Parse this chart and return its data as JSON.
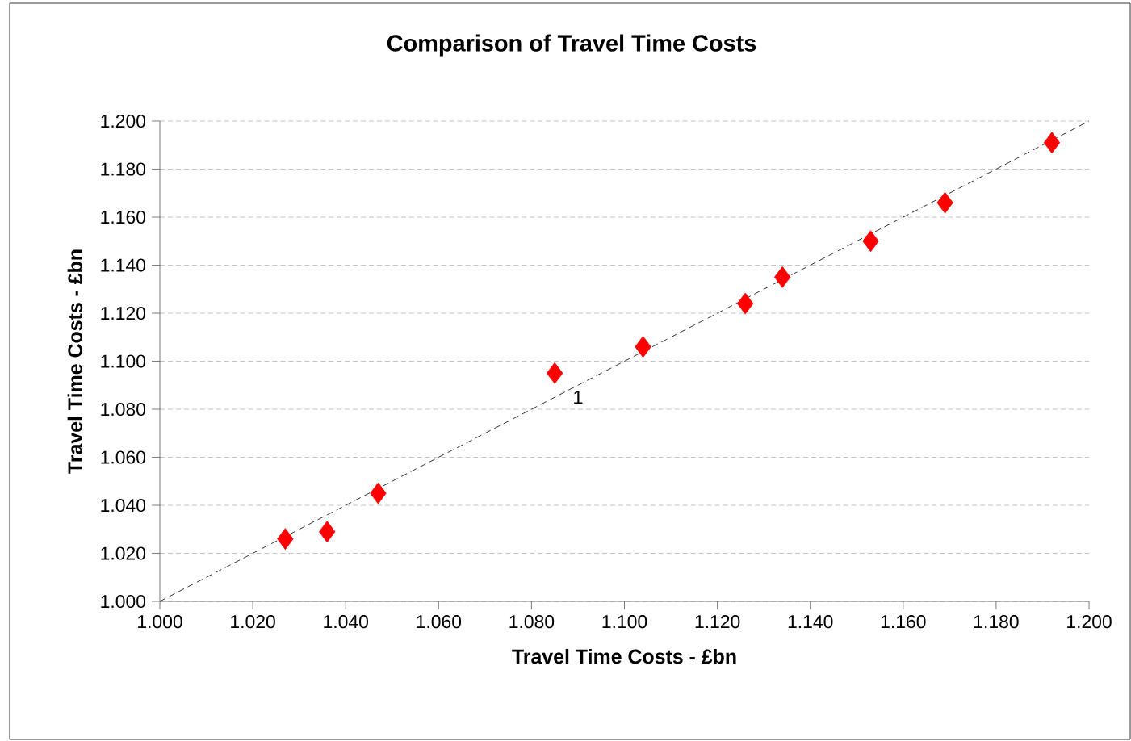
{
  "chart_data": {
    "type": "scatter",
    "title": "Comparison of Travel Time Costs",
    "xlabel": "Travel Time Costs  - £bn",
    "ylabel": "Travel Time Costs - £bn",
    "x": [
      1.027,
      1.036,
      1.047,
      1.085,
      1.104,
      1.126,
      1.134,
      1.153,
      1.169,
      1.192
    ],
    "series": [
      {
        "color": "#ff0000",
        "marker": "diamond",
        "values": [
          1.026,
          1.029,
          1.045,
          1.095,
          1.106,
          1.124,
          1.135,
          1.15,
          1.166,
          1.191
        ]
      },
      {
        "type": "line",
        "color": "#000000",
        "line_style": "dashed",
        "marker": "none",
        "x": [
          1.0,
          1.2
        ],
        "values": [
          1.0,
          1.2
        ]
      }
    ],
    "annotations": [
      "1"
    ],
    "xlim": [
      1.0,
      1.2
    ],
    "ylim": [
      1.0,
      1.2
    ],
    "xticks": [
      {
        "value": 1.0,
        "label": "1.000"
      },
      {
        "value": 1.02,
        "label": "1.020"
      },
      {
        "value": 1.04,
        "label": "1.040"
      },
      {
        "value": 1.06,
        "label": "1.060"
      },
      {
        "value": 1.08,
        "label": "1.080"
      },
      {
        "value": 1.1,
        "label": "1.100"
      },
      {
        "value": 1.12,
        "label": "1.120"
      },
      {
        "value": 1.14,
        "label": "1.140"
      },
      {
        "value": 1.16,
        "label": "1.160"
      },
      {
        "value": 1.18,
        "label": "1.180"
      },
      {
        "value": 1.2,
        "label": "1.200"
      }
    ],
    "yticks": [
      {
        "value": 1.0,
        "label": "1.000"
      },
      {
        "value": 1.02,
        "label": "1.020"
      },
      {
        "value": 1.04,
        "label": "1.040"
      },
      {
        "value": 1.06,
        "label": "1.060"
      },
      {
        "value": 1.08,
        "label": "1.080"
      },
      {
        "value": 1.1,
        "label": "1.100"
      },
      {
        "value": 1.12,
        "label": "1.120"
      },
      {
        "value": 1.14,
        "label": "1.140"
      },
      {
        "value": 1.16,
        "label": "1.160"
      },
      {
        "value": 1.18,
        "label": "1.180"
      },
      {
        "value": 1.2,
        "label": "1.200"
      }
    ],
    "grid": "y"
  }
}
